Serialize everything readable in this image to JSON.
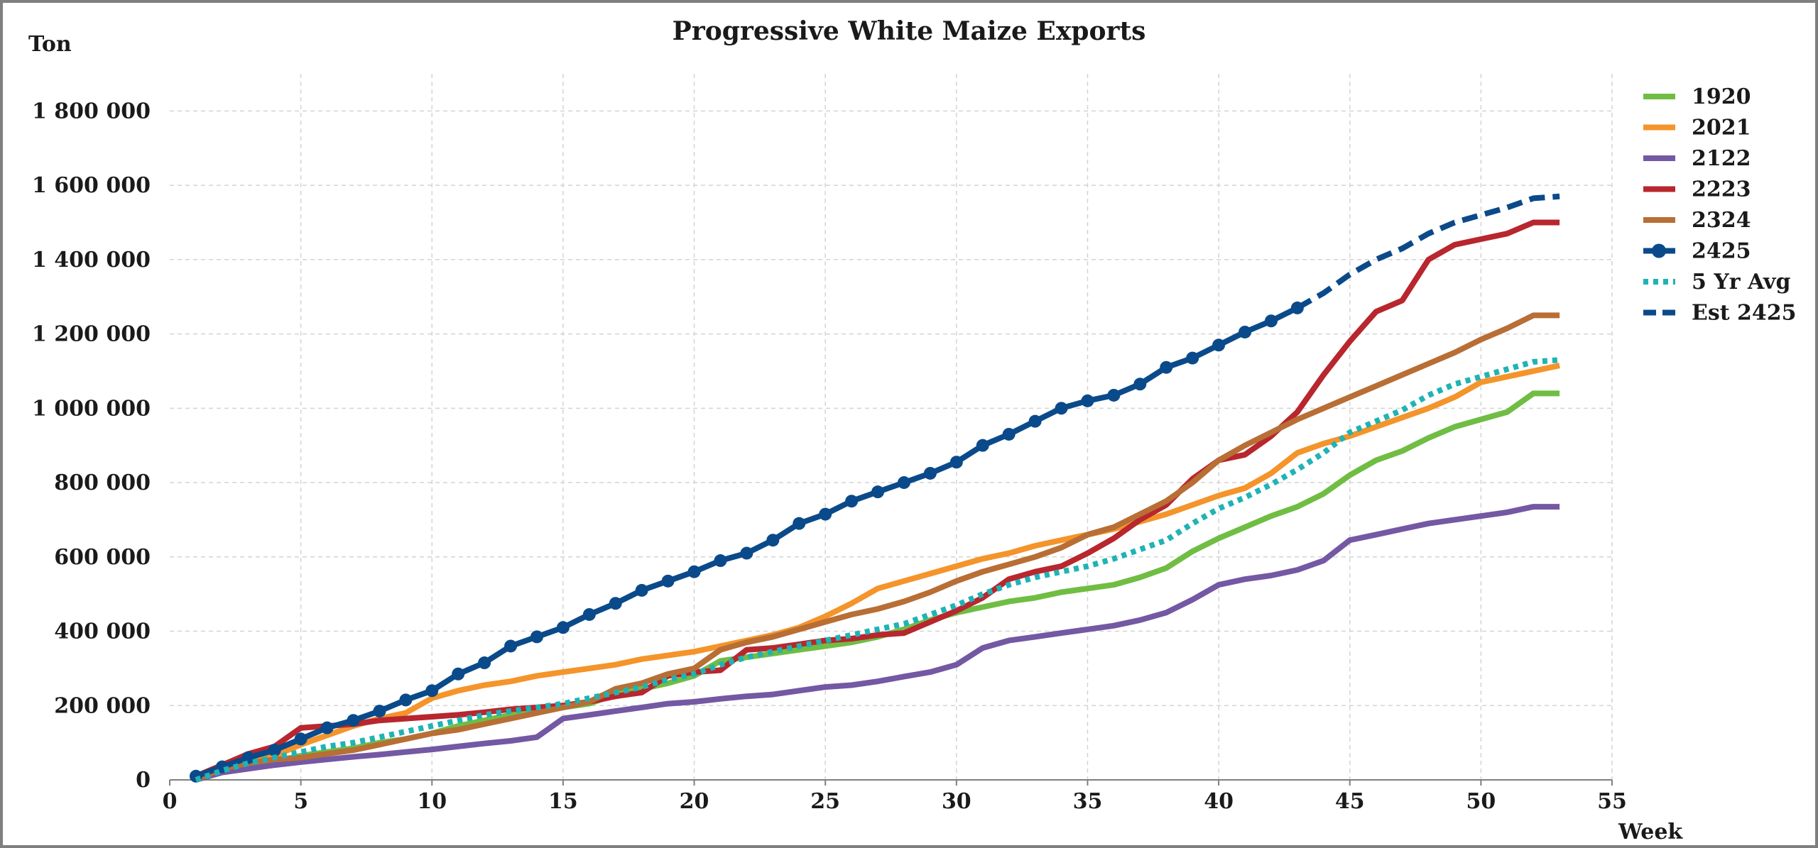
{
  "chart_data": {
    "type": "line",
    "title": "Progressive White Maize Exports",
    "ylabel": "Ton",
    "xlabel": "Week",
    "xlim": [
      0,
      55
    ],
    "ylim": [
      0,
      1900000
    ],
    "x_ticks": [
      0,
      5,
      10,
      15,
      20,
      25,
      30,
      35,
      40,
      45,
      50,
      55
    ],
    "x_tick_labels": [
      "0",
      "5",
      "10",
      "15",
      "20",
      "25",
      "30",
      "35",
      "40",
      "45",
      "50",
      "55"
    ],
    "y_ticks": [
      0,
      200000,
      400000,
      600000,
      800000,
      1000000,
      1200000,
      1400000,
      1600000,
      1800000
    ],
    "y_tick_labels": [
      "0",
      "200 000",
      "400 000",
      "600 000",
      "800 000",
      "1 000 000",
      "1 200 000",
      "1 400 000",
      "1 600 000",
      "1 800 000"
    ],
    "grid": true,
    "legend_position": "right",
    "series": [
      {
        "name": "1920",
        "color": "#70bd44",
        "style": "solid",
        "x_start": 1,
        "values": [
          0,
          25000,
          38000,
          50000,
          65000,
          75000,
          85000,
          100000,
          110000,
          125000,
          145000,
          160000,
          175000,
          185000,
          195000,
          205000,
          230000,
          245000,
          260000,
          280000,
          320000,
          330000,
          340000,
          350000,
          360000,
          370000,
          385000,
          405000,
          430000,
          450000,
          465000,
          480000,
          490000,
          505000,
          515000,
          525000,
          545000,
          570000,
          615000,
          650000,
          680000,
          710000,
          735000,
          770000,
          820000,
          860000,
          885000,
          920000,
          950000,
          970000,
          990000,
          1040000,
          1040000
        ]
      },
      {
        "name": "2021",
        "color": "#f4942a",
        "style": "solid",
        "x_start": 1,
        "values": [
          0,
          25000,
          45000,
          65000,
          95000,
          120000,
          145000,
          165000,
          180000,
          220000,
          240000,
          255000,
          265000,
          280000,
          290000,
          300000,
          310000,
          325000,
          335000,
          345000,
          360000,
          375000,
          390000,
          410000,
          440000,
          475000,
          515000,
          535000,
          555000,
          575000,
          595000,
          610000,
          630000,
          645000,
          660000,
          675000,
          695000,
          715000,
          740000,
          765000,
          785000,
          825000,
          880000,
          905000,
          925000,
          950000,
          975000,
          1000000,
          1030000,
          1070000,
          1085000,
          1100000,
          1115000
        ]
      },
      {
        "name": "2122",
        "color": "#7458a3",
        "style": "solid",
        "x_start": 1,
        "values": [
          0,
          20000,
          30000,
          40000,
          48000,
          55000,
          62000,
          68000,
          75000,
          82000,
          90000,
          98000,
          105000,
          115000,
          165000,
          175000,
          185000,
          195000,
          205000,
          210000,
          218000,
          225000,
          230000,
          240000,
          250000,
          255000,
          265000,
          278000,
          290000,
          310000,
          355000,
          375000,
          385000,
          395000,
          405000,
          415000,
          430000,
          450000,
          485000,
          525000,
          540000,
          550000,
          565000,
          590000,
          645000,
          660000,
          675000,
          690000,
          700000,
          710000,
          720000,
          735000,
          735000
        ]
      },
      {
        "name": "2223",
        "color": "#b8262e",
        "style": "solid",
        "x_start": 1,
        "values": [
          10000,
          40000,
          70000,
          90000,
          140000,
          145000,
          150000,
          160000,
          165000,
          170000,
          175000,
          182000,
          190000,
          195000,
          200000,
          210000,
          225000,
          235000,
          280000,
          290000,
          295000,
          350000,
          355000,
          365000,
          375000,
          380000,
          390000,
          395000,
          425000,
          455000,
          490000,
          540000,
          560000,
          575000,
          610000,
          650000,
          700000,
          740000,
          810000,
          860000,
          875000,
          925000,
          990000,
          1090000,
          1180000,
          1260000,
          1290000,
          1400000,
          1440000,
          1455000,
          1470000,
          1500000,
          1500000
        ]
      },
      {
        "name": "2324",
        "color": "#b86e34",
        "style": "solid",
        "x_start": 1,
        "values": [
          0,
          30000,
          45000,
          55000,
          60000,
          70000,
          80000,
          95000,
          110000,
          125000,
          135000,
          150000,
          165000,
          180000,
          195000,
          210000,
          245000,
          260000,
          285000,
          300000,
          350000,
          370000,
          385000,
          405000,
          425000,
          445000,
          460000,
          480000,
          505000,
          535000,
          560000,
          580000,
          600000,
          625000,
          660000,
          680000,
          715000,
          750000,
          800000,
          860000,
          900000,
          935000,
          970000,
          1000000,
          1030000,
          1060000,
          1090000,
          1120000,
          1150000,
          1185000,
          1215000,
          1250000,
          1250000
        ]
      },
      {
        "name": "2425",
        "color": "#0b4a8a",
        "style": "solid-markers",
        "x_start": 1,
        "values": [
          10000,
          35000,
          60000,
          80000,
          110000,
          140000,
          160000,
          185000,
          215000,
          240000,
          285000,
          315000,
          360000,
          385000,
          410000,
          445000,
          475000,
          510000,
          535000,
          560000,
          590000,
          610000,
          645000,
          690000,
          715000,
          750000,
          775000,
          800000,
          825000,
          855000,
          900000,
          930000,
          965000,
          1000000,
          1020000,
          1035000,
          1065000,
          1110000,
          1135000,
          1170000,
          1205000,
          1235000,
          1270000
        ]
      },
      {
        "name": "5 Yr Avg",
        "color": "#1fb3b5",
        "style": "dotted",
        "x_start": 1,
        "values": [
          0,
          25000,
          45000,
          60000,
          75000,
          90000,
          100000,
          115000,
          130000,
          145000,
          160000,
          175000,
          185000,
          195000,
          205000,
          220000,
          235000,
          250000,
          270000,
          285000,
          310000,
          330000,
          345000,
          360000,
          375000,
          390000,
          405000,
          420000,
          445000,
          470000,
          500000,
          525000,
          545000,
          560000,
          575000,
          595000,
          620000,
          645000,
          690000,
          730000,
          760000,
          795000,
          835000,
          880000,
          935000,
          965000,
          995000,
          1035000,
          1065000,
          1085000,
          1105000,
          1125000,
          1130000
        ]
      },
      {
        "name": "Est 2425",
        "color": "#0b4a8a",
        "style": "dashed",
        "x_start": 43,
        "values": [
          1270000,
          1310000,
          1360000,
          1400000,
          1430000,
          1470000,
          1500000,
          1520000,
          1540000,
          1565000,
          1570000
        ]
      }
    ]
  }
}
